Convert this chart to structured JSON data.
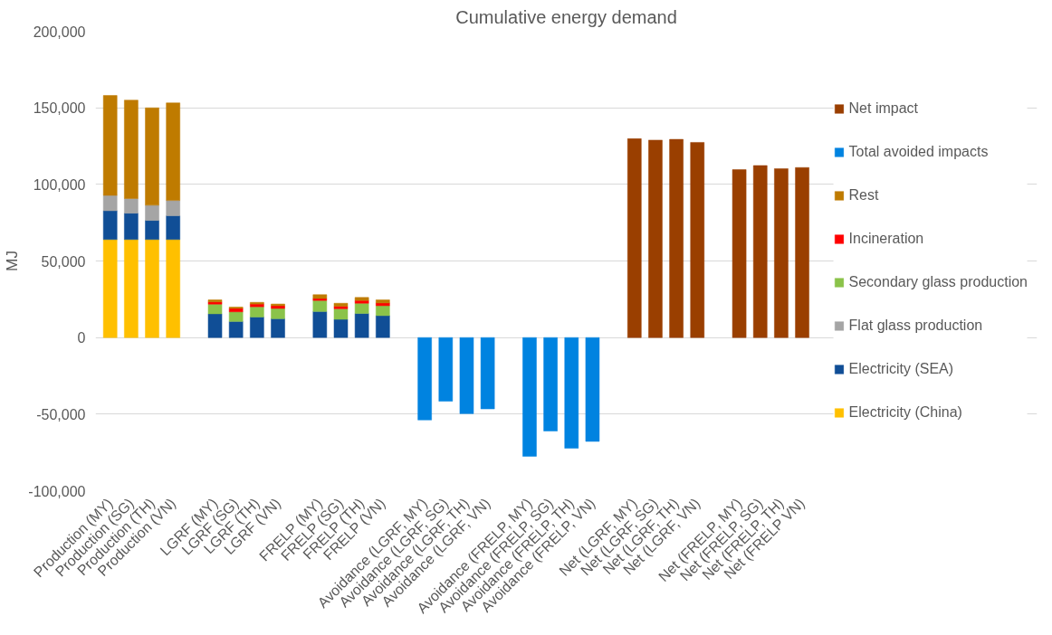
{
  "chart_data": {
    "type": "bar",
    "stacked": true,
    "title": "Cumulative energy demand",
    "ylabel": "MJ",
    "categories": [
      "Production (MY)",
      "Production (SG)",
      "Production (TH)",
      "Production (VN)",
      null,
      "LGRF (MY)",
      "LGRF (SG)",
      "LGRF (TH)",
      "LGRF (VN)",
      null,
      "FRELP (MY)",
      "FRELP (SG)",
      "FRELP (TH)",
      "FRELP (VN)",
      null,
      "Avoidance (LGRF, MY)",
      "Avoidance (LGRF, SG)",
      "Avoidance (LGRF, TH)",
      "Avoidance (LGRF, VN)",
      null,
      "Avoidance (FRELP, MY)",
      "Avoidance (FRELP, SG)",
      "Avoidance (FRELP, TH)",
      "Avoidance (FRELP, VN)",
      null,
      "Net (LGRF, MY)",
      "Net (LGRF, SG)",
      "Net (LGRF, TH)",
      "Net (LGRF, VN)",
      null,
      "Net (FRELP, MY)",
      "Net (FRELP, SG)",
      "Net (FRELP, TH)",
      "Net (FRELP VN)"
    ],
    "series": [
      {
        "name": "Electricity (China)",
        "color": "#ffc000",
        "values": [
          64000,
          64000,
          64000,
          64000,
          null,
          null,
          null,
          null,
          null,
          null,
          null,
          null,
          null,
          null,
          null,
          null,
          null,
          null,
          null,
          null,
          null,
          null,
          null,
          null,
          null,
          null,
          null,
          null,
          null,
          null,
          null,
          null,
          null,
          null
        ]
      },
      {
        "name": "Electricity (SEA)",
        "color": "#104e96",
        "values": [
          18800,
          17200,
          12500,
          15500,
          null,
          15500,
          10500,
          13400,
          12300,
          null,
          17000,
          11900,
          15700,
          14300,
          null,
          null,
          null,
          null,
          null,
          null,
          null,
          null,
          null,
          null,
          null,
          null,
          null,
          null,
          null,
          null,
          null,
          null,
          null,
          null
        ]
      },
      {
        "name": "Flat glass production",
        "color": "#a5a5a5",
        "values": [
          10000,
          9600,
          9900,
          10000,
          null,
          null,
          null,
          null,
          null,
          null,
          null,
          null,
          null,
          null,
          null,
          null,
          null,
          null,
          null,
          null,
          null,
          null,
          null,
          null,
          null,
          null,
          null,
          null,
          null,
          null,
          null,
          null,
          null,
          null
        ]
      },
      {
        "name": "Secondary glass production",
        "color": "#8bc34a",
        "values": [
          null,
          null,
          null,
          null,
          null,
          6300,
          6300,
          6700,
          6700,
          null,
          7200,
          6900,
          6700,
          6500,
          null,
          null,
          null,
          null,
          null,
          null,
          null,
          null,
          null,
          null,
          null,
          null,
          null,
          null,
          null,
          null,
          null,
          null,
          null,
          null
        ]
      },
      {
        "name": "Incineration",
        "color": "#ff0000",
        "values": [
          null,
          null,
          null,
          null,
          null,
          1500,
          2200,
          1800,
          1800,
          null,
          1300,
          1600,
          1800,
          1800,
          null,
          null,
          null,
          null,
          null,
          null,
          null,
          null,
          null,
          null,
          null,
          null,
          null,
          null,
          null,
          null,
          null,
          null,
          null,
          null
        ]
      },
      {
        "name": "Rest",
        "color": "#bf7b00",
        "values": [
          65200,
          64200,
          63600,
          63700,
          null,
          1300,
          900,
          1100,
          1100,
          null,
          2500,
          2000,
          2000,
          2000,
          null,
          null,
          null,
          null,
          null,
          null,
          null,
          null,
          null,
          null,
          null,
          null,
          null,
          null,
          null,
          null,
          null,
          null,
          null,
          null
        ]
      },
      {
        "name": "Total avoided impacts",
        "color": "#0083e0",
        "values": [
          null,
          null,
          null,
          null,
          null,
          null,
          null,
          null,
          null,
          null,
          null,
          null,
          null,
          null,
          null,
          -53800,
          -41600,
          -49700,
          -46600,
          null,
          -77500,
          -61000,
          -72300,
          -67800,
          null,
          null,
          null,
          null,
          null,
          null,
          null,
          null,
          null,
          null
        ]
      },
      {
        "name": "Net impact",
        "color": "#9a3f00",
        "values": [
          null,
          null,
          null,
          null,
          null,
          null,
          null,
          null,
          null,
          null,
          null,
          null,
          null,
          null,
          null,
          null,
          null,
          null,
          null,
          null,
          null,
          null,
          null,
          null,
          null,
          129800,
          128900,
          129400,
          127400,
          null,
          109600,
          112300,
          110300,
          111000
        ]
      }
    ],
    "ylim": [
      -100000,
      200000
    ],
    "yticks": [
      {
        "value": -100000,
        "label": "-100,000"
      },
      {
        "value": -50000,
        "label": "-50,000"
      },
      {
        "value": 0,
        "label": "0"
      },
      {
        "value": 50000,
        "label": "50,000"
      },
      {
        "value": 100000,
        "label": "100,000"
      },
      {
        "value": 150000,
        "label": "150,000"
      },
      {
        "value": 200000,
        "label": "200,000"
      }
    ],
    "grid": "y",
    "legend": "right"
  }
}
